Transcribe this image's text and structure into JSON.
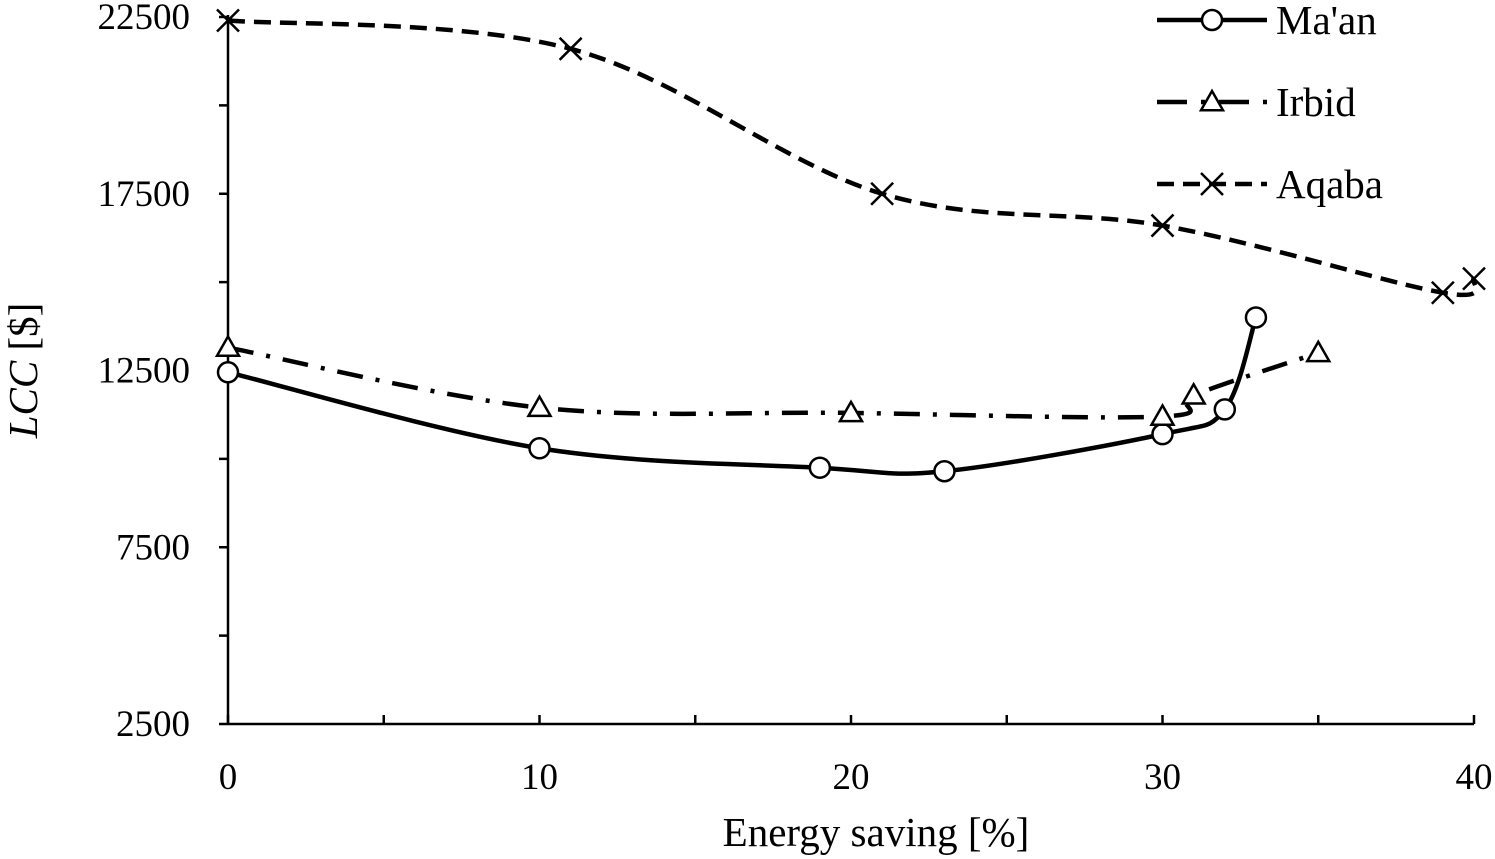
{
  "chart_data": {
    "type": "line",
    "xlabel": "Energy saving [%]",
    "ylabel_italic": "LCC",
    "ylabel_unit": " [$]",
    "xlim": [
      0,
      40
    ],
    "ylim": [
      2500,
      22500
    ],
    "xticks": [
      0,
      10,
      20,
      30,
      40
    ],
    "yticks": [
      2500,
      7500,
      12500,
      17500,
      22500
    ],
    "y_minor_step": 2500,
    "x_minor_step": 5,
    "grid": false,
    "legend_position": "top-right",
    "series": [
      {
        "name": "Ma'an",
        "marker": "circle",
        "line_style": "solid",
        "x": [
          0,
          10,
          19,
          23,
          30,
          32,
          33
        ],
        "y": [
          12450,
          10300,
          9750,
          9650,
          10700,
          11400,
          14000
        ]
      },
      {
        "name": "Irbid",
        "marker": "triangle",
        "line_style": "dash-dot",
        "x": [
          0,
          10,
          20,
          30,
          31,
          35
        ],
        "y": [
          13150,
          11450,
          11300,
          11200,
          11800,
          13000
        ]
      },
      {
        "name": "Aqaba",
        "marker": "x",
        "line_style": "dashed",
        "x": [
          0,
          11,
          21,
          30,
          39,
          40
        ],
        "y": [
          22400,
          21600,
          17500,
          16600,
          14700,
          15100
        ]
      }
    ]
  }
}
